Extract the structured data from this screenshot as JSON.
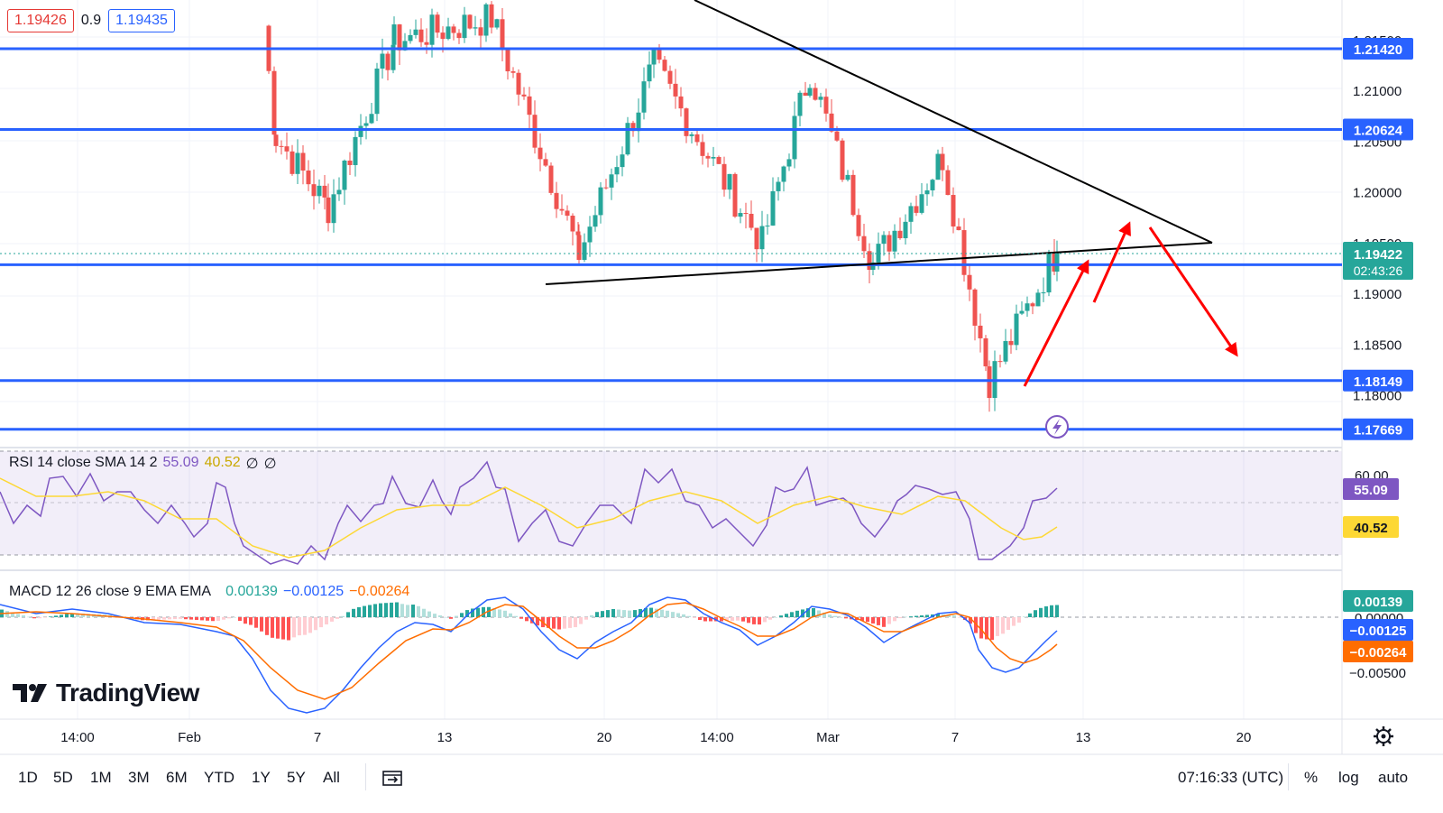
{
  "ohlc_header": {
    "bid": "1.19426",
    "spread": "0.9",
    "ask": "1.19435"
  },
  "rsi_legend": {
    "label": "RSI 14 close SMA 14 2",
    "rsi": "55.09",
    "sma": "40.52",
    "extra1": "∅",
    "extra2": "∅"
  },
  "macd_legend": {
    "label": "MACD 12 26 close 9 EMA EMA",
    "hist": "0.00139",
    "macd": "−0.00125",
    "signal": "−0.00264"
  },
  "logo": {
    "text": "TradingView"
  },
  "bottom_bar": {
    "timeframes": [
      "1D",
      "5D",
      "1M",
      "3M",
      "6M",
      "YTD",
      "1Y",
      "5Y",
      "All"
    ],
    "time": "07:16:33 (UTC)",
    "percent": "%",
    "log": "log",
    "auto": "auto"
  },
  "icons": {
    "compare": "compare-calendar-icon",
    "settings": "gear-icon",
    "alert": "lightning-icon",
    "logo": "tradingview-logo-icon"
  },
  "colors": {
    "level": "#2962ff",
    "up": "#26a69a",
    "down": "#ef5350",
    "rsi": "#7e57c2",
    "rsi_sma": "#fdd835",
    "macd": "#2962ff",
    "signal": "#ff6d00",
    "arrow": "#ff0000",
    "trend": "#000000"
  },
  "chart_data": {
    "type": "candlestick",
    "symbol_pair": "EUR/USD",
    "x_ticks": [
      "14:00",
      "Feb",
      "7",
      "13",
      "20",
      "14:00",
      "Mar",
      "7",
      "13",
      "20"
    ],
    "y_ticks": [
      "1.21500",
      "1.21000",
      "1.20500",
      "1.20000",
      "1.19500",
      "1.19000",
      "1.18500",
      "1.18000"
    ],
    "ylim": [
      1.1748,
      1.219
    ],
    "levels": [
      {
        "value": 1.2142,
        "label": "1.21420"
      },
      {
        "value": 1.20624,
        "label": "1.20624"
      },
      {
        "value": 1.19291,
        "label": "1.19291"
      },
      {
        "value": 1.18149,
        "label": "1.18149"
      },
      {
        "value": 1.17669,
        "label": "1.17669"
      }
    ],
    "last_price": {
      "label": "1.19422",
      "countdown": "02:43:26"
    },
    "swing_points": [
      {
        "date": "late Jan",
        "price": 1.2165
      },
      {
        "date": "Feb 4",
        "price": 1.2055
      },
      {
        "date": "Feb 7",
        "price": 1.1985
      },
      {
        "date": "Feb 10",
        "price": 1.215
      },
      {
        "date": "Feb 14",
        "price": 1.2172
      },
      {
        "date": "Feb 19",
        "price": 1.194
      },
      {
        "date": "Feb 23",
        "price": 1.2125
      },
      {
        "date": "Feb 27",
        "price": 1.195
      },
      {
        "date": "Feb 29",
        "price": 1.212
      },
      {
        "date": "Mar 3",
        "price": 1.193
      },
      {
        "date": "Mar 6",
        "price": 1.2035
      },
      {
        "date": "Mar 8",
        "price": 1.1815
      },
      {
        "date": "Mar 11",
        "price": 1.1942
      }
    ],
    "rsi": {
      "y_tick": "60.00",
      "band": [
        30,
        70
      ],
      "current_rsi": 55.09,
      "current_sma": 40.52,
      "rsi_label": "55.09",
      "sma_label": "40.52"
    },
    "macd": {
      "y_ticks": [
        "0.00000",
        "−0.00500"
      ],
      "histogram": 0.00139,
      "macd": -0.00125,
      "signal": -0.00264,
      "hist_label": "0.00139",
      "macd_label": "−0.00125",
      "signal_label": "−0.00264"
    }
  }
}
